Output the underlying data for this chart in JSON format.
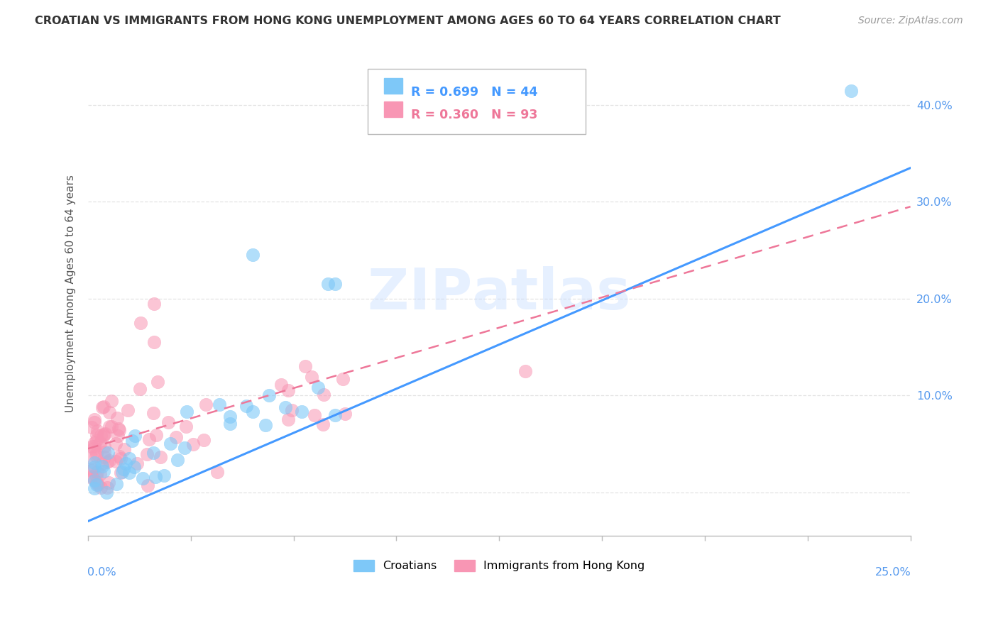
{
  "title": "CROATIAN VS IMMIGRANTS FROM HONG KONG UNEMPLOYMENT AMONG AGES 60 TO 64 YEARS CORRELATION CHART",
  "source": "Source: ZipAtlas.com",
  "ylabel": "Unemployment Among Ages 60 to 64 years",
  "ytick_values": [
    0.0,
    0.1,
    0.2,
    0.3,
    0.4
  ],
  "ytick_labels": [
    "",
    "10.0%",
    "20.0%",
    "30.0%",
    "40.0%"
  ],
  "xmin": 0.0,
  "xmax": 0.25,
  "ymin": -0.045,
  "ymax": 0.455,
  "croatians_color": "#7EC8F8",
  "hk_color": "#F896B4",
  "croatians_label": "Croatians",
  "hk_label": "Immigrants from Hong Kong",
  "legend_r_croatians": "R = 0.699",
  "legend_n_croatians": "N = 44",
  "legend_r_hk": "R = 0.360",
  "legend_n_hk": "N = 93",
  "background_color": "#FFFFFF",
  "grid_color": "#DDDDDD",
  "watermark": "ZIPatlas",
  "blue_line_x": [
    0.0,
    0.25
  ],
  "blue_line_y": [
    -0.03,
    0.335
  ],
  "pink_line_x": [
    0.0,
    0.25
  ],
  "pink_line_y": [
    0.045,
    0.295
  ],
  "title_color": "#333333",
  "source_color": "#999999",
  "axis_label_color": "#5599EE",
  "ylabel_color": "#555555"
}
